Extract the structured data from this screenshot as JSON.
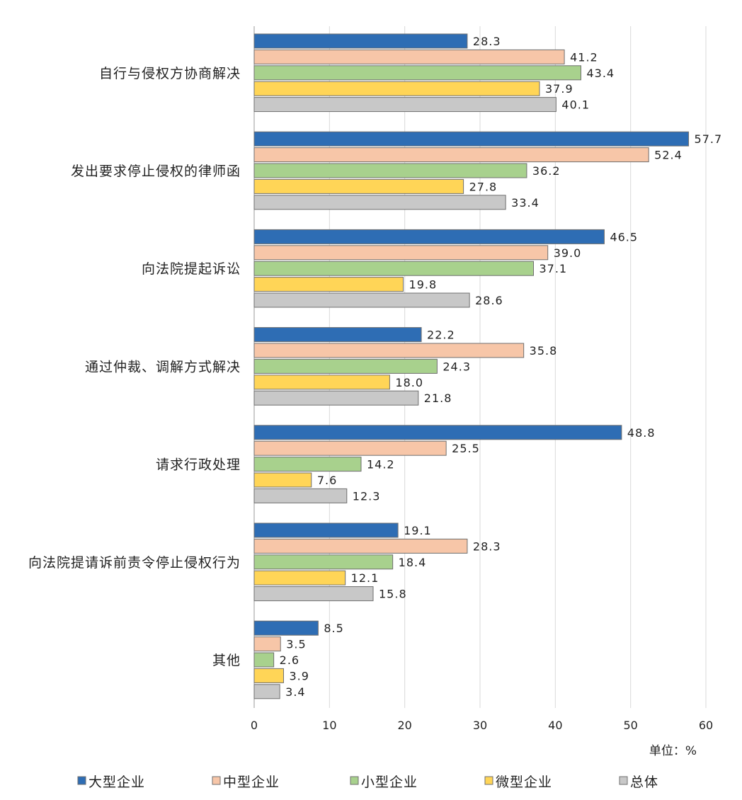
{
  "chart_data": {
    "type": "bar",
    "orientation": "horizontal",
    "unit_label": "单位：%",
    "xlim": [
      0,
      60
    ],
    "xticks": [
      0,
      10,
      20,
      30,
      40,
      50,
      60
    ],
    "grid": true,
    "legend_position": "bottom",
    "categories": [
      "自行与侵权方协商解决",
      "发出要求停止侵权的律师函",
      "向法院提起诉讼",
      "通过仲裁、调解方式解决",
      "请求行政处理",
      "向法院提请诉前责令停止侵权行为",
      "其他"
    ],
    "series": [
      {
        "name": "大型企业",
        "color": "#2E6DB4",
        "values": [
          "28.3",
          "57.7",
          "46.5",
          "22.2",
          "48.8",
          "19.1",
          "8.5"
        ]
      },
      {
        "name": "中型企业",
        "color": "#F7C6A8",
        "values": [
          "41.2",
          "52.4",
          "39.0",
          "35.8",
          "25.5",
          "28.3",
          "3.5"
        ]
      },
      {
        "name": "小型企业",
        "color": "#A8D18D",
        "values": [
          "43.4",
          "36.2",
          "37.1",
          "24.3",
          "14.2",
          "18.4",
          "2.6"
        ]
      },
      {
        "name": "微型企业",
        "color": "#FFD557",
        "values": [
          "37.9",
          "27.8",
          "19.8",
          "18.0",
          "7.6",
          "12.1",
          "3.9"
        ]
      },
      {
        "name": "总体",
        "color": "#C8C8C8",
        "values": [
          "40.1",
          "33.4",
          "28.6",
          "21.8",
          "12.3",
          "15.8",
          "3.4"
        ]
      }
    ]
  }
}
